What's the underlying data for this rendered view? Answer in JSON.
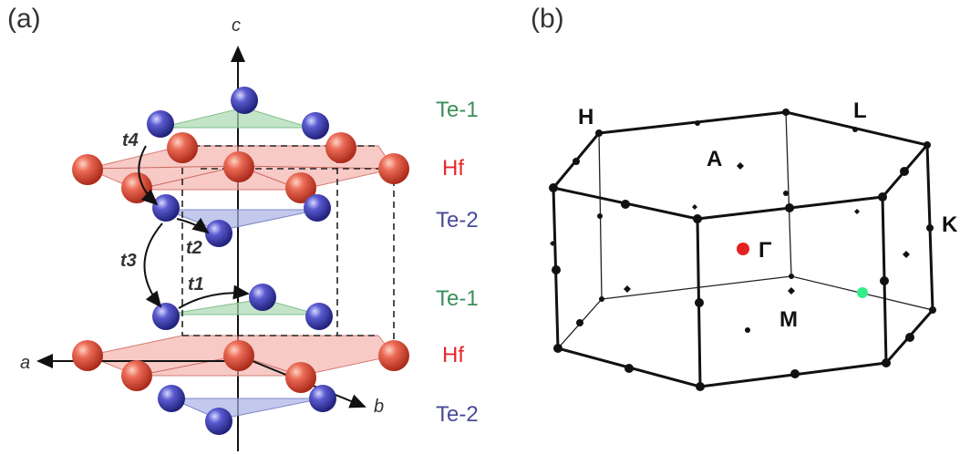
{
  "panel_a": {
    "tag": "(a)",
    "axes": {
      "a": "a",
      "b": "b",
      "c": "c"
    },
    "hoppings": [
      "t4",
      "t3",
      "t2",
      "t1"
    ],
    "layers": [
      {
        "label": "Te-1",
        "color": "#3a8f5a"
      },
      {
        "label": "Hf",
        "color": "#e8262a"
      },
      {
        "label": "Te-2",
        "color": "#4a4a9a"
      },
      {
        "label": "Te-1",
        "color": "#3a8f5a"
      },
      {
        "label": "Hf",
        "color": "#e8262a"
      },
      {
        "label": "Te-2",
        "color": "#4a4a9a"
      }
    ],
    "atom_colors": {
      "Hf": "#e0473a",
      "Te": "#3f3fb0"
    }
  },
  "panel_b": {
    "tag": "(b)",
    "points": {
      "H": "H",
      "L": "L",
      "A": "A",
      "K": "K",
      "Gamma": "Γ",
      "M": "M"
    },
    "gamma_color": "#e52222",
    "marker_color": "#33ee88"
  }
}
